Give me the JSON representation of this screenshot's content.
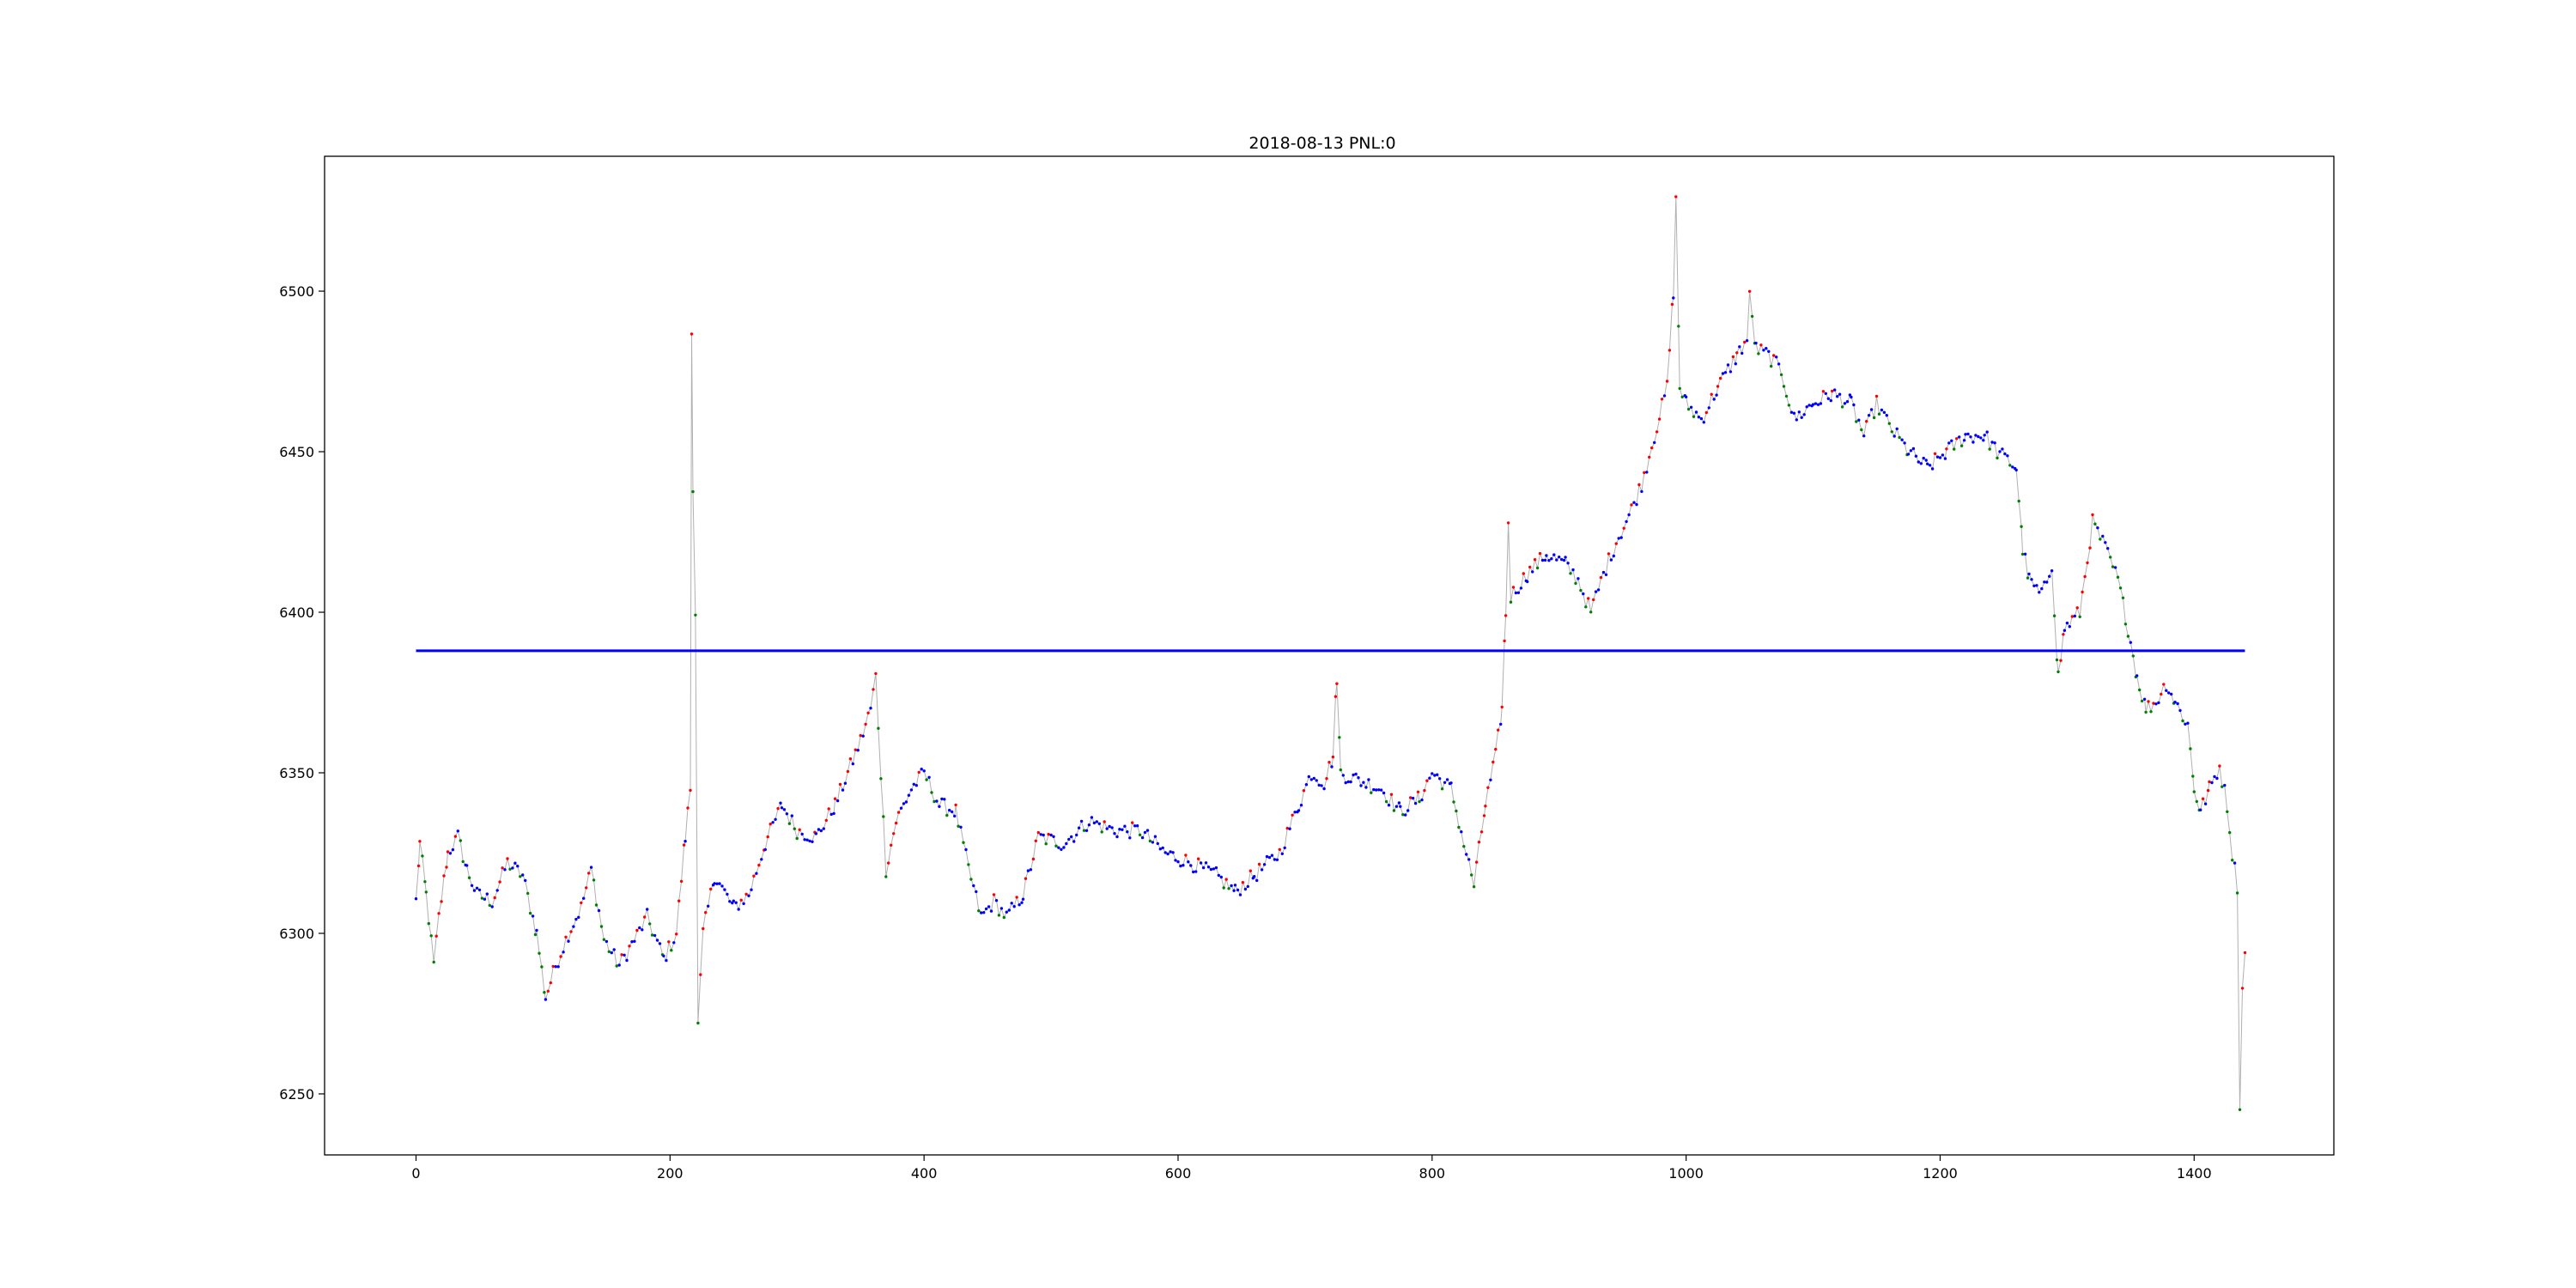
{
  "chart_data": {
    "type": "scatter",
    "title": "2018-08-13 PNL:0",
    "xlabel": "",
    "ylabel": "",
    "xlim": [
      -72,
      1510
    ],
    "ylim": [
      6231,
      6542
    ],
    "xticks": [
      0,
      200,
      400,
      600,
      800,
      1000,
      1200,
      1400
    ],
    "yticks": [
      6250,
      6300,
      6350,
      6400,
      6450,
      6500
    ],
    "grid": false,
    "legend": "none",
    "colors": {
      "price_line": "#b0b0b0",
      "up_marker": "#ff0000",
      "down_marker": "#008000",
      "neutral_marker": "#0000ff",
      "reference_line": "#0000ff"
    },
    "reference_line": {
      "y": 6388,
      "x_start": 0,
      "x_end": 1440
    },
    "price_anchors": [
      [
        0,
        6310
      ],
      [
        3,
        6328
      ],
      [
        8,
        6312
      ],
      [
        14,
        6290
      ],
      [
        18,
        6305
      ],
      [
        25,
        6325
      ],
      [
        33,
        6330
      ],
      [
        40,
        6320
      ],
      [
        48,
        6312
      ],
      [
        60,
        6310
      ],
      [
        72,
        6322
      ],
      [
        84,
        6318
      ],
      [
        95,
        6300
      ],
      [
        102,
        6280
      ],
      [
        110,
        6290
      ],
      [
        120,
        6300
      ],
      [
        130,
        6308
      ],
      [
        138,
        6320
      ],
      [
        148,
        6298
      ],
      [
        160,
        6290
      ],
      [
        172,
        6298
      ],
      [
        182,
        6305
      ],
      [
        195,
        6292
      ],
      [
        205,
        6300
      ],
      [
        212,
        6330
      ],
      [
        216,
        6345
      ],
      [
        217,
        6487
      ],
      [
        218,
        6440
      ],
      [
        220,
        6400
      ],
      [
        222,
        6271
      ],
      [
        226,
        6300
      ],
      [
        235,
        6318
      ],
      [
        250,
        6308
      ],
      [
        262,
        6312
      ],
      [
        275,
        6328
      ],
      [
        288,
        6340
      ],
      [
        300,
        6332
      ],
      [
        315,
        6330
      ],
      [
        330,
        6340
      ],
      [
        342,
        6352
      ],
      [
        350,
        6360
      ],
      [
        358,
        6370
      ],
      [
        362,
        6380
      ],
      [
        366,
        6350
      ],
      [
        370,
        6320
      ],
      [
        378,
        6335
      ],
      [
        390,
        6345
      ],
      [
        400,
        6350
      ],
      [
        412,
        6340
      ],
      [
        425,
        6338
      ],
      [
        435,
        6320
      ],
      [
        445,
        6305
      ],
      [
        455,
        6310
      ],
      [
        465,
        6305
      ],
      [
        478,
        6312
      ],
      [
        490,
        6330
      ],
      [
        510,
        6328
      ],
      [
        530,
        6335
      ],
      [
        550,
        6332
      ],
      [
        570,
        6332
      ],
      [
        590,
        6325
      ],
      [
        610,
        6322
      ],
      [
        630,
        6318
      ],
      [
        645,
        6313
      ],
      [
        660,
        6318
      ],
      [
        680,
        6325
      ],
      [
        695,
        6340
      ],
      [
        705,
        6350
      ],
      [
        715,
        6347
      ],
      [
        722,
        6355
      ],
      [
        725,
        6380
      ],
      [
        728,
        6350
      ],
      [
        740,
        6348
      ],
      [
        760,
        6345
      ],
      [
        775,
        6338
      ],
      [
        790,
        6342
      ],
      [
        800,
        6350
      ],
      [
        815,
        6345
      ],
      [
        825,
        6328
      ],
      [
        833,
        6315
      ],
      [
        842,
        6340
      ],
      [
        850,
        6355
      ],
      [
        855,
        6370
      ],
      [
        858,
        6400
      ],
      [
        860,
        6428
      ],
      [
        862,
        6405
      ],
      [
        875,
        6412
      ],
      [
        890,
        6418
      ],
      [
        905,
        6415
      ],
      [
        915,
        6410
      ],
      [
        925,
        6400
      ],
      [
        935,
        6412
      ],
      [
        945,
        6422
      ],
      [
        955,
        6430
      ],
      [
        965,
        6440
      ],
      [
        975,
        6455
      ],
      [
        985,
        6470
      ],
      [
        990,
        6500
      ],
      [
        992,
        6528
      ],
      [
        995,
        6470
      ],
      [
        1000,
        6465
      ],
      [
        1012,
        6460
      ],
      [
        1025,
        6470
      ],
      [
        1040,
        6480
      ],
      [
        1048,
        6485
      ],
      [
        1050,
        6498
      ],
      [
        1055,
        6482
      ],
      [
        1065,
        6480
      ],
      [
        1075,
        6475
      ],
      [
        1085,
        6460
      ],
      [
        1100,
        6465
      ],
      [
        1115,
        6468
      ],
      [
        1130,
        6465
      ],
      [
        1140,
        6455
      ],
      [
        1150,
        6465
      ],
      [
        1160,
        6458
      ],
      [
        1175,
        6450
      ],
      [
        1190,
        6445
      ],
      [
        1205,
        6450
      ],
      [
        1220,
        6455
      ],
      [
        1235,
        6455
      ],
      [
        1245,
        6450
      ],
      [
        1260,
        6445
      ],
      [
        1265,
        6420
      ],
      [
        1270,
        6410
      ],
      [
        1280,
        6405
      ],
      [
        1288,
        6415
      ],
      [
        1293,
        6380
      ],
      [
        1298,
        6395
      ],
      [
        1310,
        6400
      ],
      [
        1320,
        6428
      ],
      [
        1330,
        6420
      ],
      [
        1340,
        6410
      ],
      [
        1348,
        6395
      ],
      [
        1355,
        6380
      ],
      [
        1362,
        6370
      ],
      [
        1370,
        6372
      ],
      [
        1378,
        6378
      ],
      [
        1385,
        6372
      ],
      [
        1395,
        6365
      ],
      [
        1400,
        6345
      ],
      [
        1405,
        6338
      ],
      [
        1412,
        6345
      ],
      [
        1420,
        6352
      ],
      [
        1426,
        6340
      ],
      [
        1430,
        6325
      ],
      [
        1434,
        6315
      ],
      [
        1436,
        6246
      ],
      [
        1438,
        6282
      ],
      [
        1440,
        6294
      ]
    ]
  }
}
